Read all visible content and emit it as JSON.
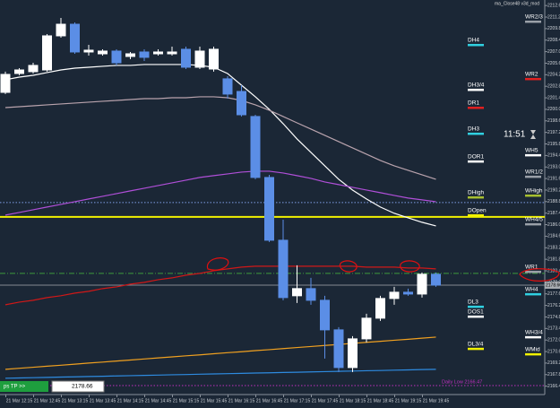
{
  "chart_data": {
    "type": "candlestick",
    "indicator_name": "ma_Close48 v3d_mod",
    "clock": "11:51",
    "button": "ps TP >>",
    "last_price": 2178.66,
    "ylim": [
      2165.38,
      2213.27
    ],
    "up_color": "#ffffff",
    "down_color": "#5b8ee6",
    "categories": [
      null,
      "21 Mar 12:15",
      null,
      "21 Mar 12:45",
      null,
      "21 Mar 13:15",
      null,
      "21 Mar 13:45",
      null,
      "21 Mar 14:15",
      null,
      "21 Mar 14:45",
      null,
      "21 Mar 15:15",
      null,
      "21 Mar 15:45",
      null,
      "21 Mar 16:15",
      null,
      "21 Mar 16:45",
      null,
      "21 Mar 17:15",
      null,
      "21 Mar 17:45",
      null,
      "21 Mar 18:15",
      null,
      "21 Mar 18:45",
      null,
      "21 Mar 19:15",
      null,
      "21 Mar 19:45"
    ],
    "open": [
      2202.06,
      2204.35,
      2204.57,
      2204.78,
      2208.92,
      2210.33,
      2206.96,
      2206.74,
      2207.07,
      2206.42,
      2206.96,
      2206.74,
      2206.74,
      2207.29,
      2205.11,
      2204.89,
      2203.7,
      2202.17,
      2199.13,
      2191.73,
      2184.11,
      2177.37,
      2178.24,
      2176.82,
      2173.23,
      2168.66,
      2172.14,
      2174.65,
      2177.04,
      2177.8,
      2177.58,
      2179.98
    ],
    "high": [
      2204.57,
      2205.0,
      2205.65,
      2209.14,
      2211.09,
      2210.55,
      2207.83,
      2207.29,
      2207.29,
      2206.96,
      2207.29,
      2207.29,
      2207.61,
      2207.61,
      2207.61,
      2207.61,
      2204.02,
      2202.93,
      2199.34,
      2192.05,
      2186.61,
      2181.07,
      2179.54,
      2177.37,
      2173.56,
      2172.47,
      2175.19,
      2177.37,
      2178.45,
      2178.24,
      2180.19,
      2180.19
    ],
    "low": [
      2201.85,
      2204.13,
      2204.35,
      2204.57,
      2208.7,
      2206.74,
      2206.52,
      2206.52,
      2205.33,
      2206.09,
      2205.87,
      2206.52,
      2206.52,
      2204.89,
      2204.89,
      2204.57,
      2201.3,
      2199.13,
      2191.51,
      2183.89,
      2176.82,
      2176.5,
      2176.28,
      2169.75,
      2168.12,
      2168.12,
      2171.71,
      2174.32,
      2176.28,
      2177.37,
      2177.15,
      2178.45
    ],
    "close": [
      2204.24,
      2204.78,
      2205.33,
      2208.92,
      2210.33,
      2206.96,
      2207.18,
      2207.07,
      2205.65,
      2206.74,
      2206.31,
      2206.96,
      2206.96,
      2205.11,
      2207.07,
      2207.29,
      2201.85,
      2199.34,
      2191.73,
      2184.11,
      2177.15,
      2178.24,
      2176.82,
      2173.23,
      2168.66,
      2172.14,
      2174.65,
      2177.04,
      2177.8,
      2177.58,
      2179.98,
      2178.66
    ],
    "lines": [
      {
        "color": "#ffffff",
        "values": [
          2203.59,
          2203.91,
          2204.13,
          2204.46,
          2204.78,
          2205.0,
          2205.11,
          2205.22,
          2205.33,
          2205.33,
          2205.44,
          2205.44,
          2205.44,
          2205.44,
          2205.33,
          2205.11,
          2204.35,
          2202.93,
          2201.52,
          2200.0,
          2198.26,
          2196.41,
          2194.77,
          2193.14,
          2191.51,
          2190.2,
          2189.12,
          2188.14,
          2187.38,
          2186.83,
          2186.29,
          2185.85
        ]
      },
      {
        "color": "#b9a3ad",
        "values": [
          2200.21,
          2200.32,
          2200.43,
          2200.54,
          2200.65,
          2200.76,
          2200.87,
          2200.98,
          2201.08,
          2201.19,
          2201.3,
          2201.3,
          2201.41,
          2201.41,
          2201.52,
          2201.52,
          2201.41,
          2201.08,
          2200.54,
          2199.89,
          2199.13,
          2198.36,
          2197.6,
          2196.84,
          2196.08,
          2195.32,
          2194.56,
          2193.79,
          2193.14,
          2192.6,
          2192.05,
          2191.51
        ]
      },
      {
        "color": "#b04fd8",
        "values": [
          2187.16,
          2187.48,
          2187.81,
          2188.14,
          2188.46,
          2188.79,
          2189.12,
          2189.44,
          2189.77,
          2190.1,
          2190.42,
          2190.75,
          2191.07,
          2191.4,
          2191.73,
          2191.95,
          2192.16,
          2192.38,
          2192.49,
          2192.49,
          2192.27,
          2191.95,
          2191.62,
          2191.18,
          2190.86,
          2190.53,
          2190.2,
          2189.88,
          2189.55,
          2189.23,
          2189.01,
          2188.79
        ]
      },
      {
        "color": "#d01818",
        "values": [
          2176.28,
          2176.6,
          2176.82,
          2177.15,
          2177.37,
          2177.69,
          2177.91,
          2178.24,
          2178.45,
          2178.78,
          2179.0,
          2179.32,
          2179.54,
          2179.87,
          2180.09,
          2180.41,
          2180.63,
          2180.85,
          2180.96,
          2180.96,
          2180.96,
          2180.96,
          2180.96,
          2180.96,
          2180.96,
          2180.96,
          2180.85,
          2180.85,
          2180.85,
          2180.74,
          2180.74,
          2180.63
        ]
      },
      {
        "color": "#f0a020",
        "values": [
          2168.44,
          2168.57,
          2168.69,
          2168.82,
          2168.94,
          2169.07,
          2169.2,
          2169.32,
          2169.45,
          2169.57,
          2169.7,
          2169.83,
          2169.95,
          2170.08,
          2170.2,
          2170.33,
          2170.46,
          2170.58,
          2170.71,
          2170.83,
          2170.96,
          2171.09,
          2171.21,
          2171.34,
          2171.46,
          2171.59,
          2171.72,
          2171.84,
          2171.97,
          2172.09,
          2172.22,
          2172.35
        ]
      },
      {
        "color": "#2e8be0",
        "values": [
          2167.36,
          2167.39,
          2167.43,
          2167.46,
          2167.5,
          2167.53,
          2167.57,
          2167.6,
          2167.64,
          2167.67,
          2167.71,
          2167.74,
          2167.78,
          2167.81,
          2167.85,
          2167.88,
          2167.92,
          2167.95,
          2167.99,
          2168.02,
          2168.06,
          2168.09,
          2168.13,
          2168.16,
          2168.2,
          2168.23,
          2168.27,
          2168.3,
          2168.34,
          2168.37,
          2168.41,
          2168.44
        ]
      }
    ],
    "hlines": [
      {
        "value": 2188.68,
        "color": "#7f9fe6",
        "style": "dotted"
      },
      {
        "value": 2186.94,
        "color": "#f2f200",
        "style": "solid"
      },
      {
        "value": 2180.09,
        "color": "#3e9a3e",
        "style": "dashdot"
      },
      {
        "value": 2166.47,
        "color": "#c030c0",
        "style": "dotted",
        "label": "Daily Low 2166.47"
      }
    ],
    "daily_levels": [
      {
        "label": "DH4",
        "value": 2207.83,
        "color": "#30d0e0"
      },
      {
        "label": "DH3/4",
        "value": 2202.39,
        "color": "#ffffff"
      },
      {
        "label": "DR1",
        "value": 2200.21,
        "color": "#e02020"
      },
      {
        "label": "DH3",
        "value": 2197.06,
        "color": "#30d0e0"
      },
      {
        "label": "DOR1",
        "value": 2193.69,
        "color": "#ffffff"
      },
      {
        "label": "DHigh",
        "value": 2189.33,
        "color": "#a8c030"
      },
      {
        "label": "DOpen",
        "value": 2187.16,
        "color": "#f2f200"
      },
      {
        "label": "DL3",
        "value": 2176.06,
        "color": "#30d0e0"
      },
      {
        "label": "DOS1",
        "value": 2174.86,
        "color": "#ffffff"
      },
      {
        "label": "DL3/4",
        "value": 2170.95,
        "color": "#f2f200"
      }
    ],
    "weekly_levels": [
      {
        "label": "WR2/3",
        "value": 2210.66,
        "color": "#9aa0a8"
      },
      {
        "label": "WR2",
        "value": 2203.7,
        "color": "#e02020"
      },
      {
        "label": "WH5",
        "value": 2194.45,
        "color": "#ffffff"
      },
      {
        "label": "WR1/2",
        "value": 2191.84,
        "color": "#9aa0a8"
      },
      {
        "label": "WHigh",
        "value": 2189.55,
        "color": "#a8c030"
      },
      {
        "label": "WH4/5",
        "value": 2186.07,
        "color": "#9aa0a8"
      },
      {
        "label": "WR1",
        "value": 2180.3,
        "color": "#9aa0a8"
      },
      {
        "label": "WH4",
        "value": 2177.58,
        "color": "#30d0e0"
      },
      {
        "label": "WH3/4",
        "value": 2172.36,
        "color": "#ffffff"
      },
      {
        "label": "WMid",
        "value": 2170.29,
        "color": "#f2f200"
      }
    ],
    "yticks": [
      {
        "value": 2212.6,
        "label": "2212.60"
      },
      {
        "value": 2211.2,
        "label": "2211.20"
      },
      {
        "value": 2209.8,
        "label": "2209.80"
      },
      {
        "value": 2208.4,
        "label": "2208.40"
      },
      {
        "value": 2207,
        "label": "2207.00"
      },
      {
        "value": 2205.6,
        "label": "2205.60"
      },
      {
        "value": 2204.2,
        "label": "2204.20"
      },
      {
        "value": 2202.8,
        "label": "2202.80"
      },
      {
        "value": 2201.4,
        "label": "2201.40"
      },
      {
        "value": 2200,
        "label": "2200.00"
      },
      {
        "value": 2198.6,
        "label": "2198.60"
      },
      {
        "value": 2197.2,
        "label": "2197.20"
      },
      {
        "value": 2195.8,
        "label": "2195.80"
      },
      {
        "value": 2194.4,
        "label": "2194.40"
      },
      {
        "value": 2193,
        "label": "2193.00"
      },
      {
        "value": 2191.6,
        "label": "2191.60"
      },
      {
        "value": 2190.2,
        "label": "2190.20"
      },
      {
        "value": 2188.8,
        "label": "2188.80"
      },
      {
        "value": 2187.4,
        "label": "2187.40"
      },
      {
        "value": 2186,
        "label": "2186.00"
      },
      {
        "value": 2184.6,
        "label": "2184.60"
      },
      {
        "value": 2183.2,
        "label": "2183.20"
      },
      {
        "value": 2181.8,
        "label": "2181.80"
      },
      {
        "value": 2180.4,
        "label": "2180.40"
      },
      {
        "value": 2179,
        "label": "2179.00"
      },
      {
        "value": 2177.6,
        "label": "2177.60"
      },
      {
        "value": 2176.2,
        "label": "2176.20"
      },
      {
        "value": 2174.8,
        "label": "2174.80"
      },
      {
        "value": 2173.4,
        "label": "2173.40"
      },
      {
        "value": 2172,
        "label": "2172.00"
      },
      {
        "value": 2170.6,
        "label": "2170.60"
      },
      {
        "value": 2169.2,
        "label": "2169.20"
      },
      {
        "value": 2167.8,
        "label": "2167.80"
      },
      {
        "value": 2166.4,
        "label": "2166.40"
      }
    ]
  }
}
